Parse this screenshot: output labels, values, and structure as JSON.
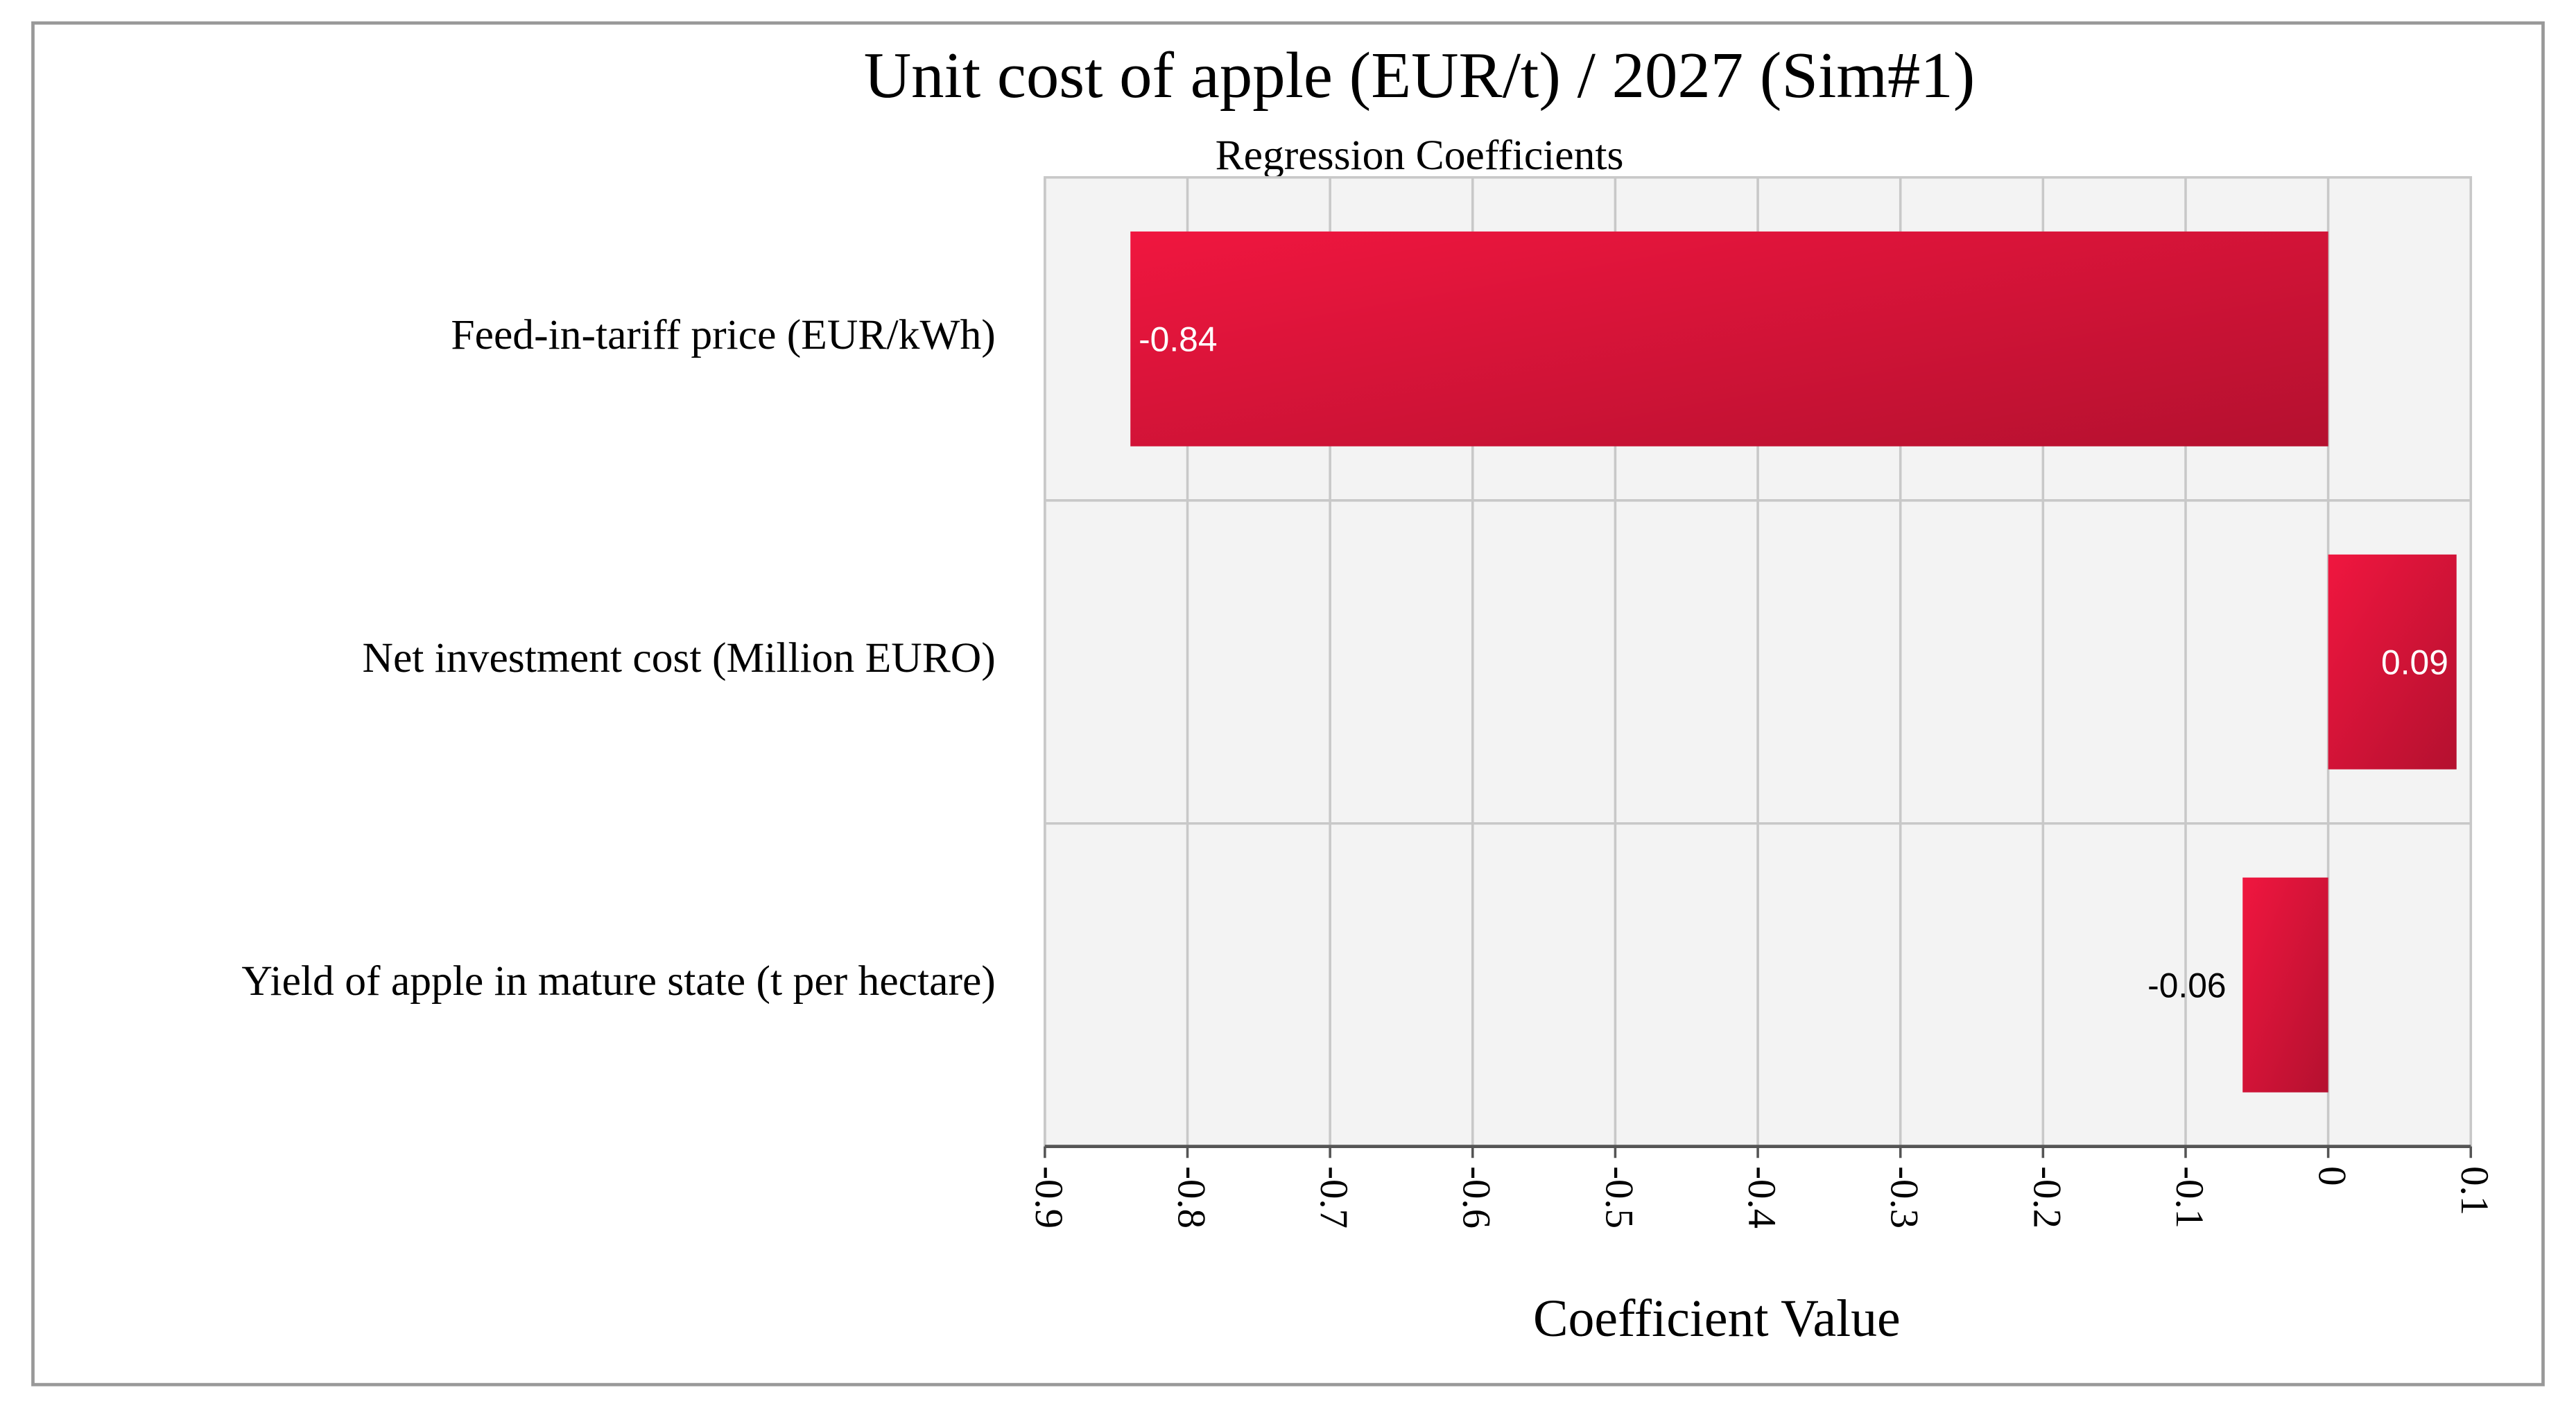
{
  "chart_data": {
    "type": "bar",
    "orientation": "horizontal",
    "title": "Unit cost of apple (EUR/t) / 2027 (Sim#1)",
    "subtitle": "Regression Coefficients",
    "x_label": "Coefficient Value",
    "categories": [
      "Feed-in-tariff price (EUR/kWh)",
      "Net investment cost (Million EURO)",
      "Yield of apple in mature state (t per hectare)"
    ],
    "values": [
      -0.84,
      0.09,
      -0.06
    ],
    "color": "#f0163f",
    "xlim": [
      -0.9,
      0.1
    ],
    "xticks": [
      -0.9,
      -0.8,
      -0.7,
      -0.6,
      -0.5,
      -0.4,
      -0.3,
      -0.2,
      -0.1,
      0,
      0.1
    ],
    "grid": true
  }
}
